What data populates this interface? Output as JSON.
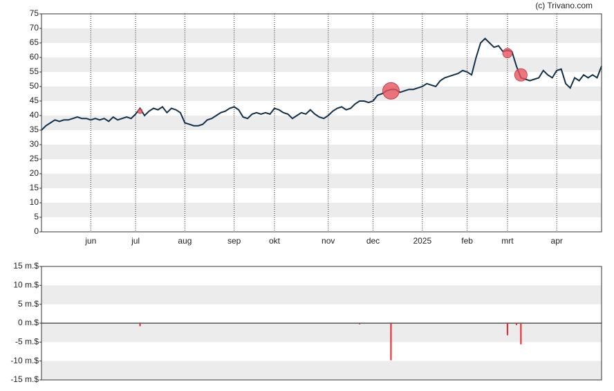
{
  "chart_data": [
    {
      "type": "line",
      "copyright": "(c) Trivano.com",
      "color": "#0f2f4a",
      "band_color": "#ececec",
      "grid": true,
      "categories": [
        null,
        null,
        null,
        null,
        null,
        null,
        null,
        null,
        null,
        null,
        null,
        "jun",
        null,
        null,
        null,
        null,
        null,
        null,
        null,
        null,
        null,
        "jul",
        null,
        null,
        null,
        null,
        null,
        null,
        null,
        null,
        null,
        null,
        "aug",
        null,
        null,
        null,
        null,
        null,
        null,
        null,
        null,
        null,
        null,
        "sep",
        null,
        null,
        null,
        null,
        null,
        null,
        null,
        null,
        "okt",
        null,
        null,
        null,
        null,
        null,
        null,
        null,
        null,
        null,
        null,
        null,
        "nov",
        null,
        null,
        null,
        null,
        null,
        null,
        null,
        null,
        null,
        "dec",
        null,
        null,
        null,
        null,
        null,
        null,
        null,
        null,
        null,
        null,
        "2025",
        null,
        null,
        null,
        null,
        null,
        null,
        null,
        null,
        null,
        "feb",
        null,
        null,
        null,
        null,
        null,
        null,
        null,
        null,
        "mrt",
        null,
        null,
        null,
        null,
        null,
        null,
        null,
        null,
        null,
        null,
        "apr",
        null,
        null,
        null,
        null,
        null,
        null,
        null,
        null,
        null,
        null
      ],
      "values": [
        35,
        36.5,
        37.5,
        38.5,
        38,
        38.5,
        38.5,
        39,
        39.5,
        39,
        39,
        38.5,
        39,
        38.5,
        39,
        38,
        39.5,
        38.5,
        39,
        39.5,
        39,
        40.5,
        42.5,
        40,
        41.5,
        42.5,
        42,
        43,
        41,
        42.5,
        42,
        41,
        37.5,
        37,
        36.5,
        36.5,
        37,
        38.5,
        39,
        40,
        41,
        41.5,
        42.5,
        43,
        42,
        39.5,
        39,
        40.5,
        41,
        40.5,
        41,
        40.5,
        42.5,
        42,
        41,
        40.5,
        39,
        40,
        41,
        40.5,
        42,
        40.5,
        39.5,
        39,
        40,
        41.5,
        42.5,
        43,
        42,
        42.5,
        44,
        45,
        45,
        44.5,
        45,
        47,
        47.5,
        48.5,
        49,
        49,
        48,
        48.5,
        49,
        49,
        49.5,
        50,
        51,
        50.5,
        50,
        52,
        53,
        53.5,
        54,
        54.5,
        55.5,
        55,
        54,
        60,
        65,
        66.5,
        65,
        63.5,
        64,
        62,
        62.5,
        62,
        57,
        53,
        52.5,
        52,
        52.5,
        53,
        55.5,
        54,
        53,
        55.5,
        56,
        51,
        49.5,
        53,
        52,
        54,
        53,
        54,
        53,
        57
      ],
      "markers": {
        "color": "#e8545f",
        "category_index": [
          22,
          78,
          104,
          107
        ],
        "values": [
          41.5,
          48.5,
          61.5,
          54
        ],
        "sizes": [
          0.8,
          9.8,
          3.2,
          5.6
        ]
      },
      "ylim": [
        0,
        75
      ],
      "yticks": [
        0,
        5,
        10,
        15,
        20,
        25,
        30,
        35,
        40,
        45,
        50,
        55,
        60,
        65,
        70,
        75
      ]
    },
    {
      "type": "bar",
      "color": "#e8212f",
      "band_color": "#ececec",
      "x": [
        22,
        71,
        78,
        104,
        106,
        107
      ],
      "values": [
        -0.8,
        -0.3,
        -9.8,
        -3.2,
        -0.5,
        -5.6
      ],
      "xlim": [
        0,
        125
      ],
      "ylim": [
        -15,
        15
      ],
      "yticks": [
        {
          "value": -15,
          "label": "-15 m.$"
        },
        {
          "value": -10,
          "label": "-10 m.$"
        },
        {
          "value": -5,
          "label": "-5 m.$"
        },
        {
          "value": 0,
          "label": "0 m.$"
        },
        {
          "value": 5,
          "label": "5 m.$"
        },
        {
          "value": 10,
          "label": "10 m.$"
        },
        {
          "value": 15,
          "label": "15 m.$"
        }
      ]
    }
  ]
}
